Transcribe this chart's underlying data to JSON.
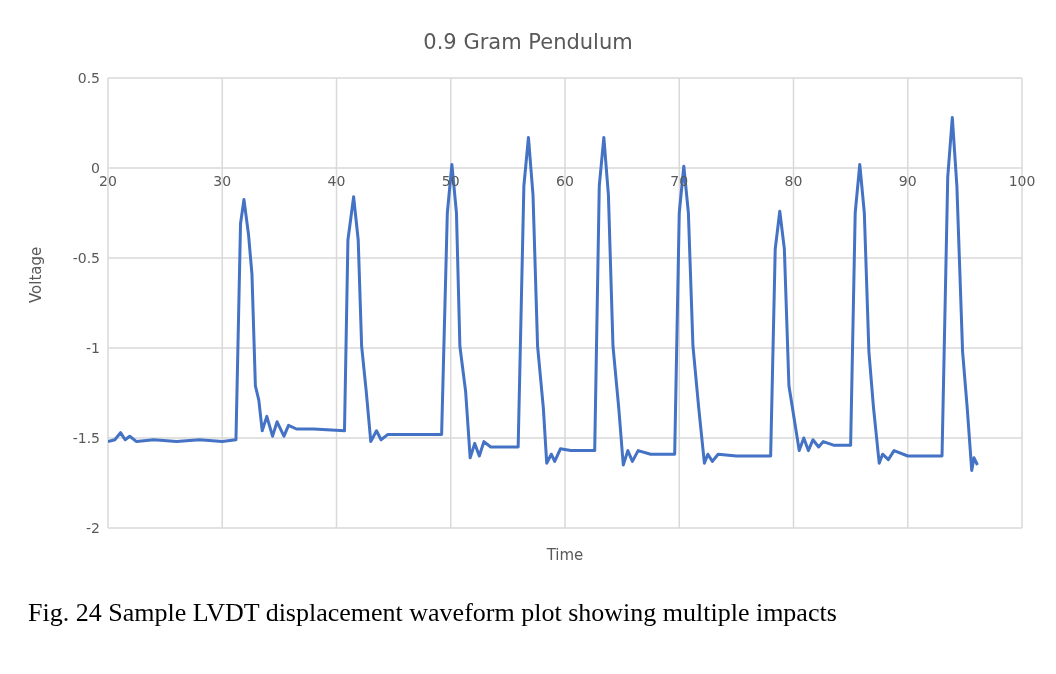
{
  "chart_data": {
    "type": "line",
    "title": "0.9 Gram Pendulum",
    "xlabel": "Time",
    "ylabel": "Voltage",
    "annotations": [
      "Fig. 24 Sample LVDT displacement waveform plot showing multiple impacts"
    ],
    "xlim": [
      20,
      100
    ],
    "xticks": [
      20,
      30,
      40,
      50,
      60,
      70,
      80,
      90,
      100
    ],
    "ylim": [
      -2,
      0.5
    ],
    "yticks": [
      -2,
      -1.5,
      -1,
      -0.5,
      0,
      0.5
    ],
    "grid": true,
    "marker": "none",
    "line_style": "solid",
    "series": [
      {
        "color": "#4472c4",
        "x": [
          20,
          20.6,
          21.1,
          21.5,
          21.9,
          22.5,
          24,
          26,
          28,
          30,
          31.2,
          31.6,
          31.9,
          32.3,
          32.6,
          32.9,
          33.2,
          33.5,
          33.9,
          34.4,
          34.8,
          35.4,
          35.8,
          36.5,
          38,
          40.7,
          41.0,
          41.5,
          41.9,
          42.2,
          42.6,
          43.0,
          43.5,
          43.9,
          44.5,
          46,
          48,
          49.2,
          49.7,
          50.1,
          50.5,
          50.8,
          51.3,
          51.7,
          52.1,
          52.5,
          52.9,
          53.5,
          55.9,
          56.4,
          56.8,
          57.2,
          57.6,
          58.1,
          58.4,
          58.8,
          59.1,
          59.6,
          60.5,
          62.6,
          63.0,
          63.4,
          63.8,
          64.2,
          64.7,
          65.1,
          65.5,
          65.9,
          66.4,
          67.5,
          69.6,
          70.0,
          70.4,
          70.8,
          71.2,
          71.7,
          72.2,
          72.5,
          72.9,
          73.4,
          75,
          78.0,
          78.4,
          78.8,
          79.2,
          79.6,
          80.5,
          80.9,
          81.3,
          81.7,
          82.2,
          82.6,
          83.5,
          85.0,
          85.4,
          85.8,
          86.2,
          86.6,
          87.0,
          87.5,
          87.8,
          88.3,
          88.8,
          90,
          93.0,
          93.5,
          93.9,
          94.3,
          94.8,
          95.2,
          95.6,
          95.8,
          96.1
        ],
        "values": [
          -1.52,
          -1.51,
          -1.47,
          -1.51,
          -1.49,
          -1.52,
          -1.51,
          -1.52,
          -1.51,
          -1.52,
          -1.51,
          -0.31,
          -0.175,
          -0.37,
          -0.59,
          -1.21,
          -1.29,
          -1.46,
          -1.38,
          -1.49,
          -1.41,
          -1.49,
          -1.43,
          -1.45,
          -1.45,
          -1.46,
          -0.4,
          -0.16,
          -0.4,
          -0.99,
          -1.24,
          -1.52,
          -1.46,
          -1.51,
          -1.48,
          -1.48,
          -1.48,
          -1.48,
          -0.25,
          0.02,
          -0.25,
          -0.99,
          -1.24,
          -1.61,
          -1.53,
          -1.6,
          -1.52,
          -1.55,
          -1.55,
          -0.1,
          0.17,
          -0.15,
          -0.99,
          -1.33,
          -1.64,
          -1.59,
          -1.63,
          -1.56,
          -1.57,
          -1.57,
          -0.1,
          0.17,
          -0.15,
          -0.99,
          -1.33,
          -1.65,
          -1.57,
          -1.63,
          -1.57,
          -1.59,
          -1.59,
          -0.25,
          0.01,
          -0.25,
          -0.99,
          -1.33,
          -1.64,
          -1.59,
          -1.63,
          -1.59,
          -1.6,
          -1.6,
          -0.45,
          -0.24,
          -0.45,
          -1.21,
          -1.57,
          -1.5,
          -1.57,
          -1.51,
          -1.55,
          -1.52,
          -1.54,
          -1.54,
          -0.25,
          0.02,
          -0.25,
          -1.02,
          -1.33,
          -1.64,
          -1.59,
          -1.62,
          -1.57,
          -1.6,
          -1.6,
          -0.05,
          0.28,
          -0.1,
          -1.02,
          -1.33,
          -1.68,
          -1.61,
          -1.65
        ]
      }
    ]
  }
}
